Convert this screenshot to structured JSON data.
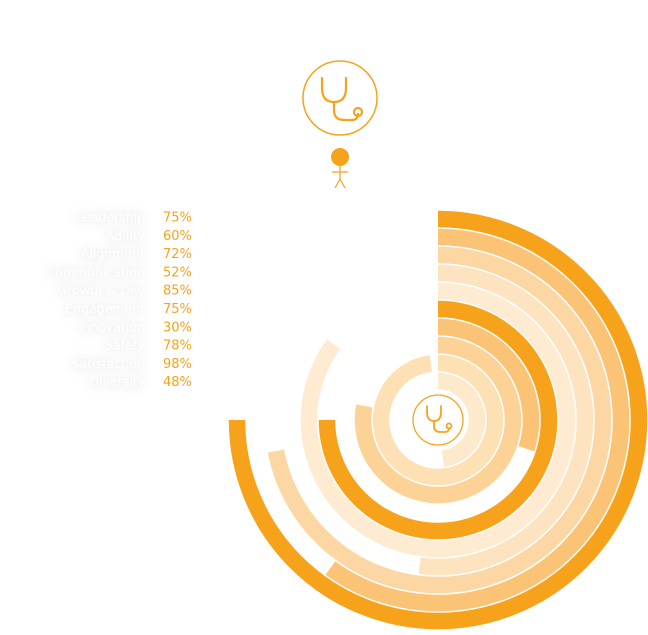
{
  "chart_data": {
    "type": "radial-bar",
    "categories": [
      "Leadership",
      "Agility",
      "Alignment",
      "Communication",
      "Growth & Dev",
      "Engagement",
      "Innovation",
      "Safety",
      "Satisfaction",
      "Diversity"
    ],
    "values": [
      75,
      60,
      72,
      52,
      85,
      75,
      30,
      78,
      98,
      48
    ],
    "value_labels": [
      "75%",
      "60%",
      "72%",
      "52%",
      "85%",
      "75%",
      "30%",
      "78%",
      "98%",
      "48%"
    ],
    "colors": [
      "#f7a21b",
      "#fbc375",
      "#fcd7a4",
      "#fde3bf",
      "#feebd2",
      "#f7a21b",
      "#fbc375",
      "#fcd296",
      "#fde0b4",
      "#fde9cc"
    ]
  }
}
